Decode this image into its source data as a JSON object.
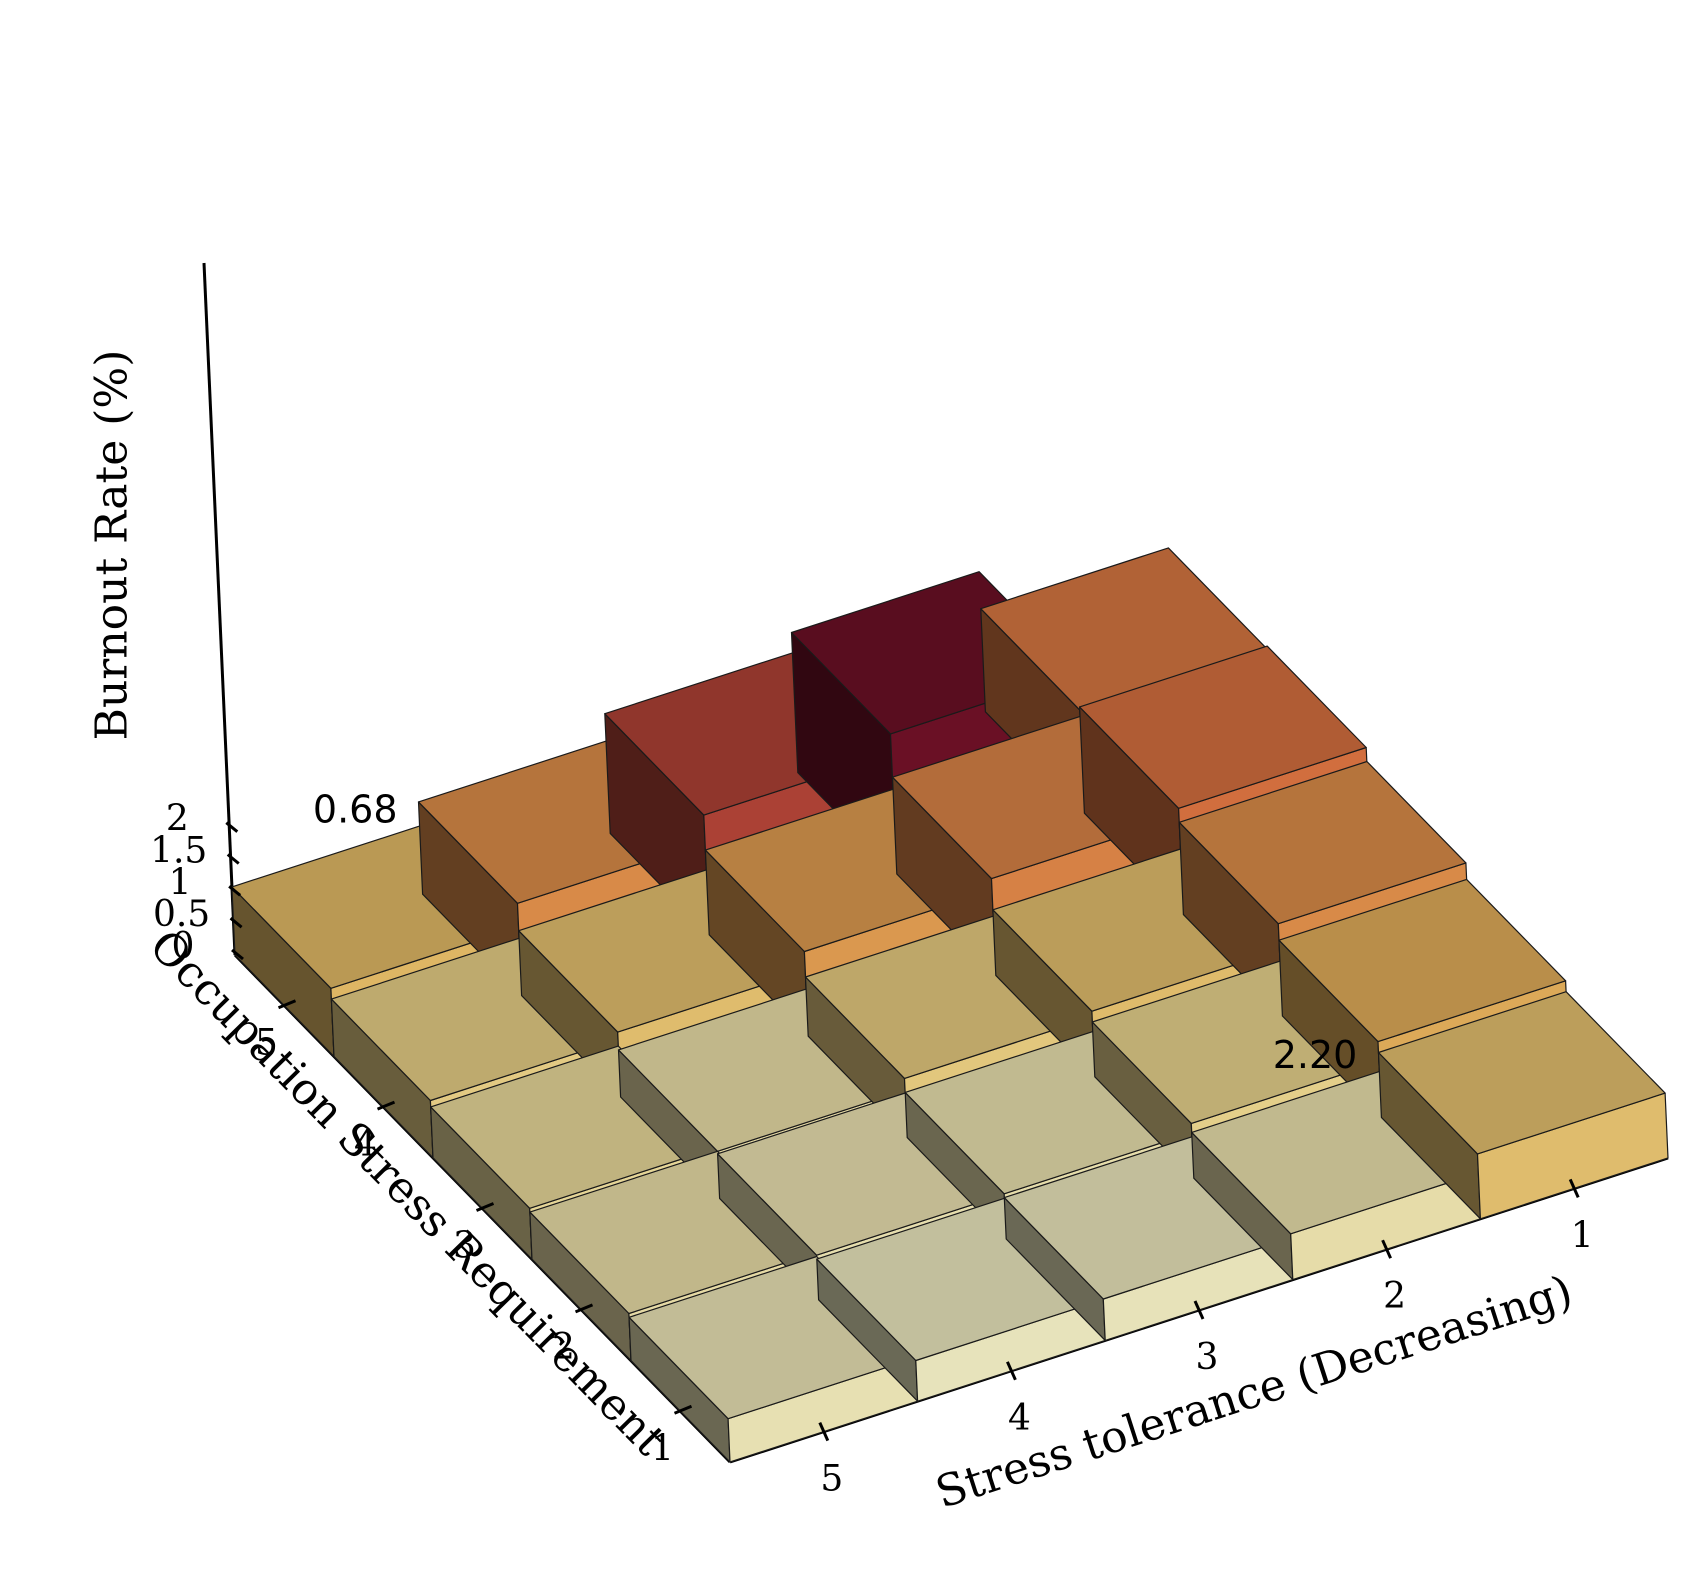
{
  "chart_data": {
    "type": "bar3d",
    "xlabel": "Stress tolerance (Decreasing)",
    "ylabel": "Occupation Stress Requirement",
    "zlabel": "Burnout Rate (%)",
    "x_categories": [
      "5",
      "4",
      "3",
      "2",
      "1"
    ],
    "y_categories": [
      "1",
      "2",
      "3",
      "4",
      "5"
    ],
    "z_ticks": [
      "0",
      "0.5",
      "1",
      "1.5",
      "2"
    ],
    "zlim": [
      0,
      2.3
    ],
    "values": [
      [
        0.68,
        0.64,
        0.65,
        0.72,
        1.02
      ],
      [
        0.74,
        0.7,
        0.71,
        0.86,
        1.19
      ],
      [
        0.8,
        0.74,
        0.93,
        1.03,
        1.45
      ],
      [
        0.9,
        1.02,
        1.33,
        1.52,
        1.67
      ],
      [
        1.07,
        1.45,
        1.88,
        2.2,
        1.62
      ]
    ],
    "annotations": [
      {
        "text": "0.68",
        "x": "5",
        "y": "5"
      },
      {
        "text": "2.20",
        "x": "2",
        "y": "1"
      }
    ],
    "colormap": {
      "stops": [
        {
          "value": 0.6,
          "color": "#e8e7c4"
        },
        {
          "value": 0.85,
          "color": "#e4d08c"
        },
        {
          "value": 1.1,
          "color": "#ddb35e"
        },
        {
          "value": 1.4,
          "color": "#d9904a"
        },
        {
          "value": 1.75,
          "color": "#cf643a"
        },
        {
          "value": 2.0,
          "color": "#8a2030"
        },
        {
          "value": 2.2,
          "color": "#6a1025"
        }
      ]
    },
    "grid": false,
    "legend": "none"
  }
}
